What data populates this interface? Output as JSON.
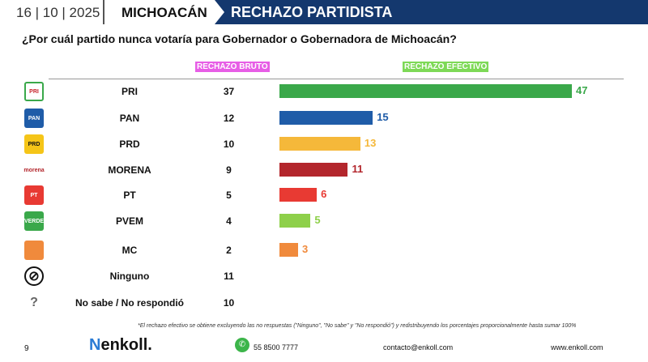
{
  "header": {
    "date": "16 | 10 | 2025",
    "state": "MICHOACÁN",
    "section": "RECHAZO PARTIDISTA"
  },
  "question": "¿Por cuál partido nunca votaría para Gobernador o Gobernadora de Michoacán?",
  "chart_data": {
    "type": "bar",
    "title": "¿Por cuál partido nunca votaría para Gobernador o Gobernadora de Michoacán?",
    "columns": {
      "bruto": "RECHAZO BRUTO",
      "efectivo": "RECHAZO EFECTIVO"
    },
    "categories": [
      "PRI",
      "PAN",
      "PRD",
      "MORENA",
      "PT",
      "PVEM",
      "MC",
      "Ninguno",
      "No sabe / No respondió"
    ],
    "icons": [
      "PRI",
      "PAN",
      "PRD",
      "morena",
      "PT",
      "VERDE",
      "",
      "",
      ""
    ],
    "series": [
      {
        "name": "RECHAZO BRUTO",
        "values": [
          37,
          12,
          10,
          9,
          5,
          4,
          2,
          11,
          10
        ]
      },
      {
        "name": "RECHAZO EFECTIVO",
        "values": [
          47,
          15,
          13,
          11,
          6,
          5,
          3,
          null,
          null
        ]
      }
    ],
    "colors": [
      "#3aa84a",
      "#1f5ca8",
      "#f5b83a",
      "#b3262c",
      "#e83a33",
      "#8ed04a",
      "#f08a3c"
    ],
    "xlim": [
      0,
      47
    ]
  },
  "footnote": "*El rechazo efectivo se obtiene excluyendo las no respuestas (\"Ninguno\", \"No sabe\" y \"No respondió\") y redistribuyendo los porcentajes proporcionalmente hasta sumar 100%",
  "footer": {
    "page": "9",
    "logo": "enkoll.",
    "phone": "55 8500 7777",
    "email": "contacto@enkoll.com",
    "web": "www.enkoll.com"
  }
}
